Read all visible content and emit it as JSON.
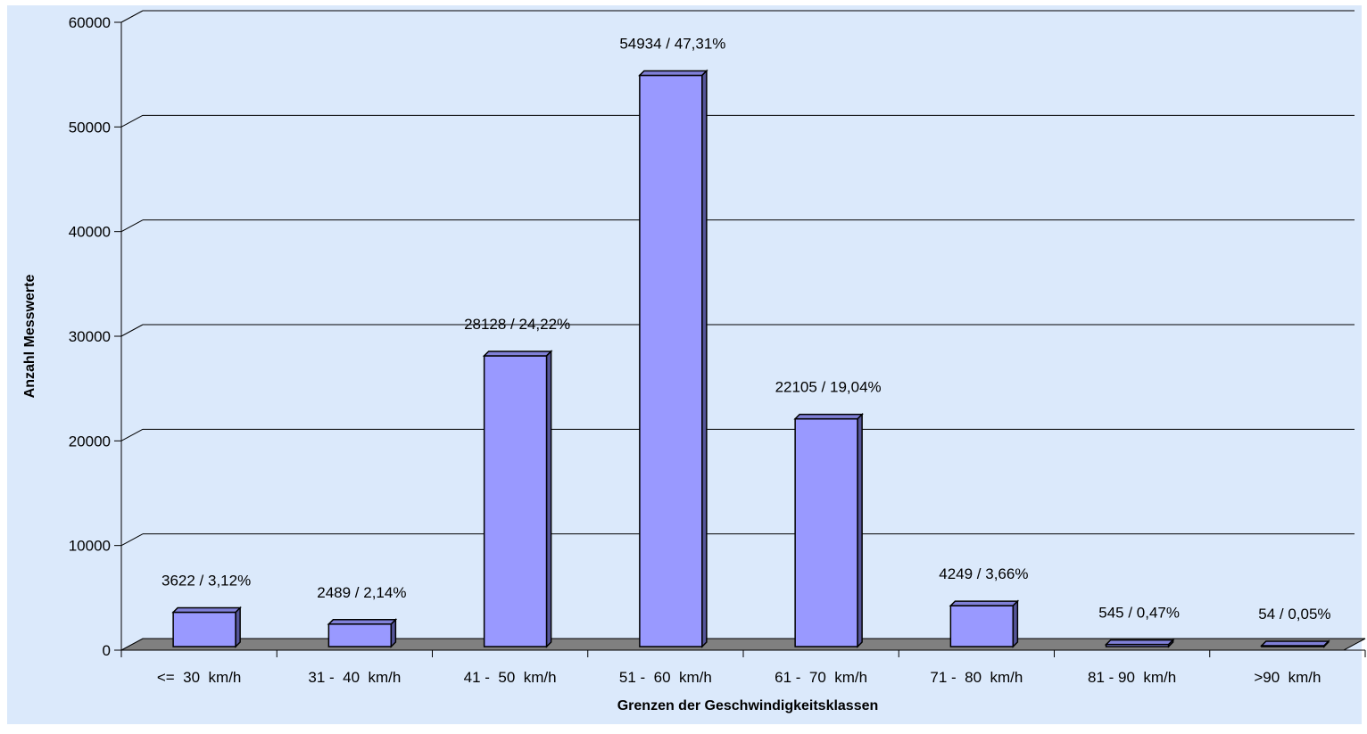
{
  "chart_data": {
    "type": "bar",
    "title": "",
    "xlabel": "Grenzen der Geschwindigkeitsklassen",
    "ylabel": "Anzahl Messwerte",
    "ylim": [
      0,
      60000
    ],
    "yticks": [
      0,
      10000,
      20000,
      30000,
      40000,
      50000,
      60000
    ],
    "grid": true,
    "legend": "none",
    "categories": [
      "<=  30  km/h",
      "31 -  40  km/h",
      "41 -  50  km/h",
      "51 -  60  km/h",
      "61 -  70  km/h",
      "71 -  80  km/h",
      "81 - 90  km/h",
      ">90  km/h"
    ],
    "values": [
      3622,
      2489,
      28128,
      54934,
      22105,
      4249,
      545,
      54
    ],
    "data_labels": [
      "3622 / 3,12%",
      "2489 / 2,14%",
      "28128 / 24,22%",
      "54934 / 47,31%",
      "22105 / 19,04%",
      "4249 / 3,66%",
      "545 / 0,47%",
      "54 / 0,05%"
    ],
    "colors": {
      "background": "#DBE9FB",
      "bar_front": "#9999FF",
      "bar_top": "#8080D8",
      "bar_side": "#555599",
      "floor": "#808080",
      "gridline": "#000000"
    }
  }
}
